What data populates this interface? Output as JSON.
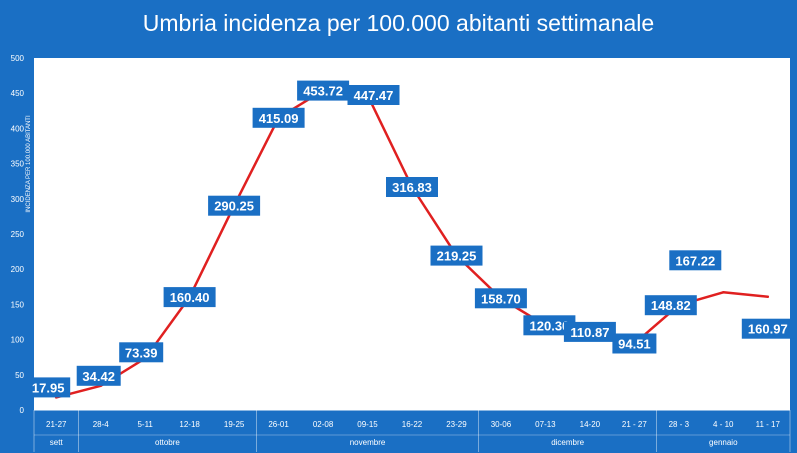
{
  "chart_data": {
    "type": "line",
    "title": "Umbria incidenza per 100.000 abitanti  settimanale",
    "ylabel": "INCIDENZA PER 100.000 ABITANTI",
    "ylim": [
      0,
      500
    ],
    "yticks": [
      0,
      50,
      100,
      150,
      200,
      250,
      300,
      350,
      400,
      450,
      500
    ],
    "categories": [
      "21-27",
      "28-4",
      "5-11",
      "12-18",
      "19-25",
      "26-01",
      "02-08",
      "09-15",
      "16-22",
      "23-29",
      "30-06",
      "07-13",
      "14-20",
      "21 - 27",
      "28 - 3",
      "4 - 10",
      "11 - 17"
    ],
    "values": [
      17.95,
      34.42,
      73.39,
      160.4,
      290.25,
      415.09,
      453.72,
      447.47,
      316.83,
      219.25,
      158.7,
      120.3,
      110.87,
      94.51,
      148.82,
      167.22,
      160.97
    ],
    "value_labels": [
      "17.95",
      "34.42",
      "73.39",
      "160.40",
      "290.25",
      "415.09",
      "453.72",
      "447.47",
      "316.83",
      "219.25",
      "158.70",
      "120.30",
      "110.87",
      "94.51",
      "148.82",
      "167.22",
      "160.97"
    ],
    "months": [
      {
        "label": "sett",
        "start": 0,
        "end": 0
      },
      {
        "label": "ottobre",
        "start": 1,
        "end": 4
      },
      {
        "label": "novembre",
        "start": 5,
        "end": 9
      },
      {
        "label": "dicembre",
        "start": 10,
        "end": 13
      },
      {
        "label": "gennaio",
        "start": 14,
        "end": 16
      }
    ],
    "grid": false,
    "colors": {
      "background": "#1a6fc4",
      "plot_area": "#ffffff",
      "line": "#e02020",
      "label_box": "#1a6fc4",
      "label_text": "#ffffff",
      "axis_text": "#ffffff"
    }
  }
}
